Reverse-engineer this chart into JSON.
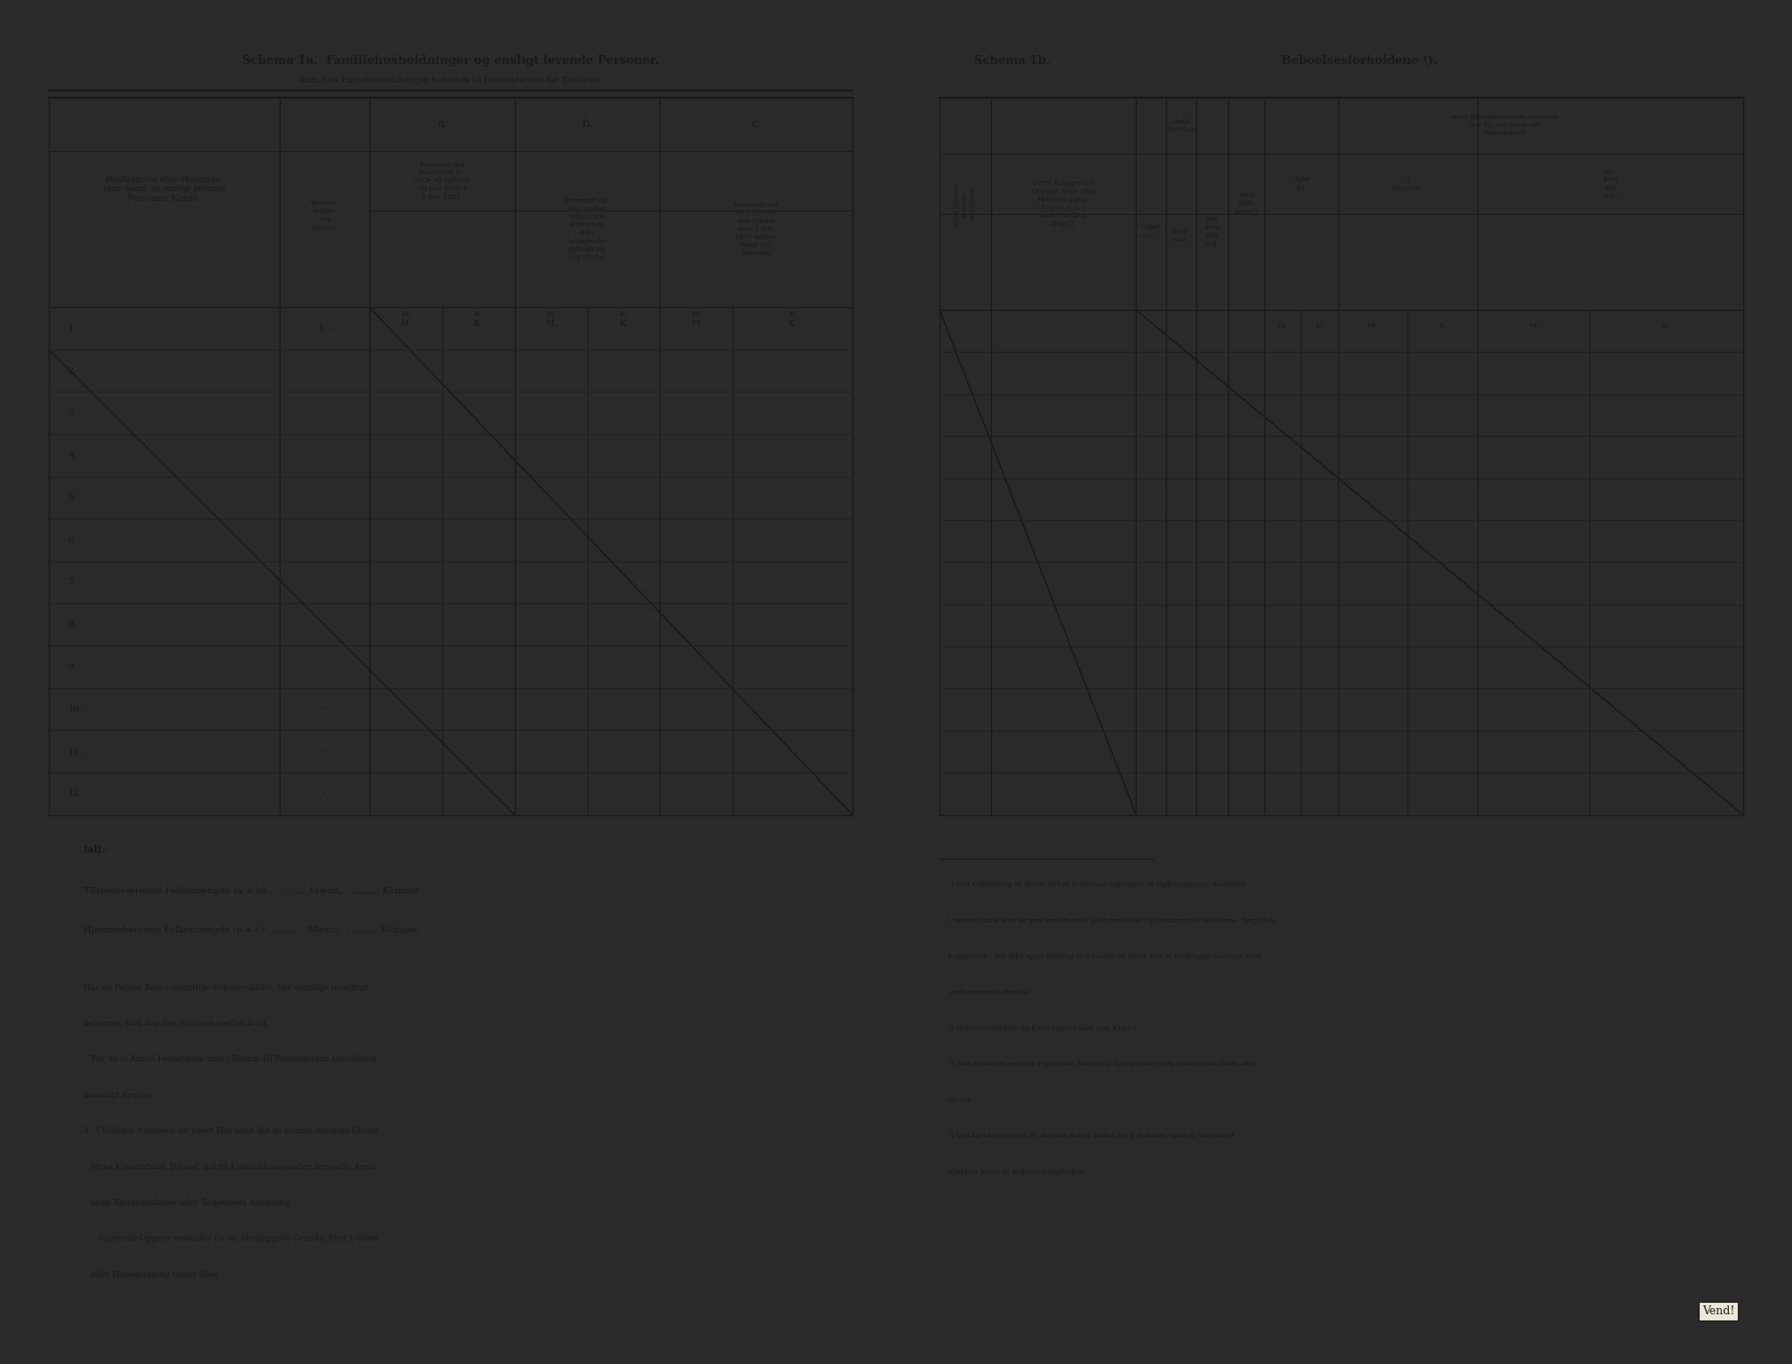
{
  "bg_color": "#ede8d5",
  "dark_color": "#1a1a1a",
  "page_bg": "#2a2a2a",
  "left_title1": "Schema 1a.  Familiehusholdninger og ensligt levende Personer.",
  "left_subtitle": "Anm. Om Extrahusholdninger henvises til Instruktionen for Tællerne.",
  "row_numbers": [
    "1.",
    "2.",
    "3.",
    "4.",
    "5.",
    "6.",
    "7.",
    "8.",
    "9.",
    "10.",
    "11.",
    "12."
  ],
  "ialt_label": "Ialt:",
  "folkemaengde1": "Tilstedeværende Folkemængde (a + b):  ..........  Mænd,  ..........  Kvinder.",
  "folkemaengde2": "Hjemmehørende Folkemængde (a + c):  ..........  Mænd,  ..........  Kvinder.",
  "footnote_lines": [
    "Har en Person flere væsentlige Erhvervskilder, bør samtlige nøiagtigt",
    "betegnes, idet dog den vigtigste sættes først.",
    "   For de af Andre Forsørgede maa i Rubrik 10 Forsørgerens Livsstilling",
    "nøiactigt angives.",
    "3.  I Schema 3 anføres for hvert Hus samt det til samme hørende Grund-",
    "   styke Kreaturhold, Udsæd, det til Kjøkkenhavevæxter anvendte Areal",
    "   samt Kjøreredskaber efter Schemaets Anvisning.",
    "      Lignende Opgave meddeles for de ubebyggede Grunde, hvor Udsæd",
    "   eller Havedyrkning finder Sted."
  ],
  "right_title": "Schema 1b.",
  "right_title2": "Beboelsesforholdene ¹).",
  "right_footnotes": [
    "¹) Ved Udfyldning af denne Del af Schemaet iagttages, at Oplysningerne meddeles",
    "i samme Linie som de paa modstaende Side meddelte Oplysninger for Beboerne. Dog blive",
    "Logærende, der ikke spise Middag ved Familiens Bord, her at medregne sammen med",
    "vedkommende Familie.",
    "²) Beboelseskælder og Kvist regnes ikke som Etager.",
    "³) Som Kjælderværelser regnes de, hvis Gulv ligger under den tilstedende Gade eller",
    "Grund.",
    "⁴) Ved Kjøkken sættes ½, dersom det er fælles for 2 Familier, samt 0, hvor intet",
    "Kjøkken hører til Bekvemmeligheden."
  ],
  "vend_label": "Vend!"
}
